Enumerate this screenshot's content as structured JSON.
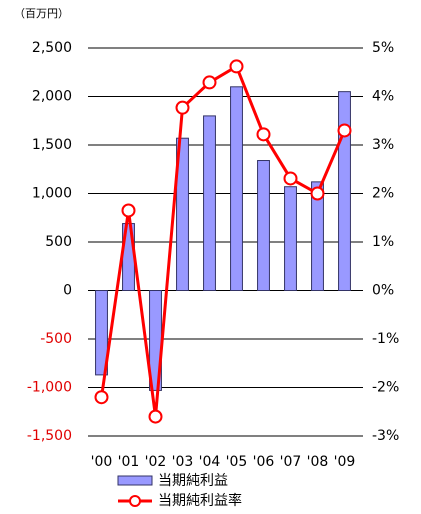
{
  "chart_data": {
    "type": "bar-line",
    "unit_label": "（百万円）",
    "categories": [
      "'00",
      "'01",
      "'02",
      "'03",
      "'04",
      "'05",
      "'06",
      "'07",
      "'08",
      "'09"
    ],
    "series": [
      {
        "name": "当期純利益",
        "type": "bar",
        "color": "#9999ff",
        "edge_color": "#333366",
        "values": [
          -870,
          690,
          -1030,
          1570,
          1800,
          2100,
          1340,
          1070,
          1120,
          2050
        ]
      },
      {
        "name": "当期純利益率",
        "type": "line",
        "axis": "y2",
        "color": "#ff0000",
        "values": [
          -2.2,
          1.65,
          -2.6,
          3.77,
          4.29,
          4.62,
          3.22,
          2.31,
          2.0,
          3.3
        ]
      }
    ],
    "ylim": [
      -1500,
      2500
    ],
    "yticks": [
      {
        "value": -1500,
        "label": "-1,500"
      },
      {
        "value": -1000,
        "label": "-1,000"
      },
      -500,
      0,
      500,
      {
        "value": 1000,
        "label": "1,000"
      },
      {
        "value": 1500,
        "label": "1,500"
      },
      {
        "value": 2000,
        "label": "2,000"
      },
      {
        "value": 2500,
        "label": "2,500"
      }
    ],
    "y2lim": [
      -3,
      5
    ],
    "y2ticks": [
      {
        "value": -3,
        "label": "-3%"
      },
      {
        "value": -2,
        "label": "-2%"
      },
      {
        "value": -1,
        "label": "-1%"
      },
      {
        "value": 0,
        "label": "0%"
      },
      {
        "value": 1,
        "label": "1%"
      },
      {
        "value": 2,
        "label": "2%"
      },
      {
        "value": 3,
        "label": "3%"
      },
      {
        "value": 4,
        "label": "4%"
      },
      {
        "value": 5,
        "label": "5%"
      }
    ],
    "negative_tick_color": "#e00000",
    "grid": true
  }
}
